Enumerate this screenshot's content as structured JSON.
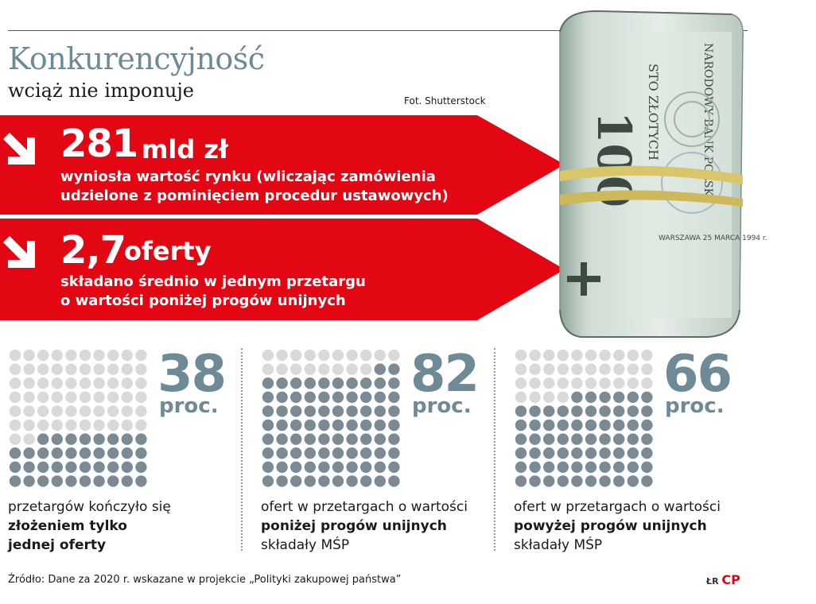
{
  "header": {
    "title": "Konkurencyjność",
    "subtitle": "wciąż nie imponuje",
    "photo_credit": "Fot. Shutterstock"
  },
  "bands": [
    {
      "value": "281",
      "unit": "mld zł",
      "line1": "wyniosła wartość rynku (wliczając zamówienia",
      "line2": "udzielone z pominięciem procedur ustawowych)"
    },
    {
      "value": "2,7",
      "unit": "oferty",
      "line1": "składano średnio w jednym przetargu",
      "line2": "o wartości poniżej progów unijnych"
    }
  ],
  "photo": {
    "note_text": "STO ZŁOTYCH",
    "denomination": "100",
    "bank_text": "NARODOWY BANK POLSKI",
    "city_date": "WARSZAWA 25 MARCA 1994 r."
  },
  "stats": [
    {
      "percent": "38",
      "unit": "proc.",
      "caption_l1": "przetargów kończyło się",
      "caption_b1": "złożeniem tylko",
      "caption_b2": "jednej oferty",
      "caption_l4": ""
    },
    {
      "percent": "82",
      "unit": "proc.",
      "caption_l1": "ofert w przetargach o wartości",
      "caption_b1": "poniżej progów unijnych",
      "caption_b2": "",
      "caption_l4": "składały MŚP"
    },
    {
      "percent": "66",
      "unit": "proc.",
      "caption_l1": "ofert w przetargach o wartości",
      "caption_b1": "powyżej progów unijnych",
      "caption_b2": "",
      "caption_l4": "składały MŚP"
    }
  ],
  "chart_data": [
    {
      "type": "waffle",
      "total": 100,
      "filled": 38,
      "label": "przetargów kończyło się złożeniem tylko jednej oferty"
    },
    {
      "type": "waffle",
      "total": 100,
      "filled": 82,
      "label": "ofert w przetargach o wartości poniżej progów unijnych składały MŚP"
    },
    {
      "type": "waffle",
      "total": 100,
      "filled": 66,
      "label": "ofert w przetargach o wartości powyżej progów unijnych składały MŚP"
    }
  ],
  "footer": {
    "source": "Źródło: Dane za 2020 r. wskazane w projekcie „Polityki zakupowej państwa”",
    "logo_text": "ŁR",
    "logo_mark": "CP"
  },
  "colors": {
    "red": "#e30613",
    "dot_filled": "#7c8b93",
    "dot_empty": "#d9d9d9",
    "accent": "#6f8a97"
  }
}
